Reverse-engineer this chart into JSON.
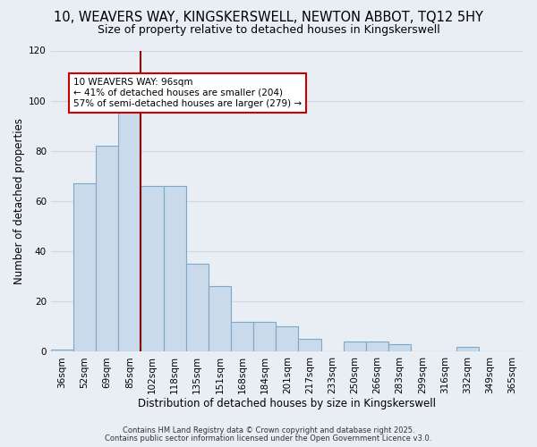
{
  "title": "10, WEAVERS WAY, KINGSKERSWELL, NEWTON ABBOT, TQ12 5HY",
  "subtitle": "Size of property relative to detached houses in Kingskerswell",
  "xlabel": "Distribution of detached houses by size in Kingskerswell",
  "ylabel": "Number of detached properties",
  "bar_labels": [
    "36sqm",
    "52sqm",
    "69sqm",
    "85sqm",
    "102sqm",
    "118sqm",
    "135sqm",
    "151sqm",
    "168sqm",
    "184sqm",
    "201sqm",
    "217sqm",
    "233sqm",
    "250sqm",
    "266sqm",
    "283sqm",
    "299sqm",
    "316sqm",
    "332sqm",
    "349sqm",
    "365sqm"
  ],
  "bar_values": [
    1,
    67,
    82,
    96,
    66,
    66,
    35,
    26,
    12,
    12,
    10,
    5,
    0,
    4,
    4,
    3,
    0,
    0,
    2,
    0,
    0
  ],
  "bar_color": "#c9daea",
  "bar_edge_color": "#7fa8c8",
  "grid_color": "#d0d8e4",
  "ylim": [
    0,
    120
  ],
  "yticks": [
    0,
    20,
    40,
    60,
    80,
    100,
    120
  ],
  "vline_index": 3.5,
  "vline_color": "#8b0000",
  "annotation_title": "10 WEAVERS WAY: 96sqm",
  "annotation_line1": "← 41% of detached houses are smaller (204)",
  "annotation_line2": "57% of semi-detached houses are larger (279) →",
  "ann_box_color": "#cc0000",
  "footer1": "Contains HM Land Registry data © Crown copyright and database right 2025.",
  "footer2": "Contains public sector information licensed under the Open Government Licence v3.0.",
  "background_color": "#e8eef4",
  "title_fontsize": 10.5,
  "subtitle_fontsize": 9,
  "tick_fontsize": 7.5,
  "axis_label_fontsize": 8.5
}
